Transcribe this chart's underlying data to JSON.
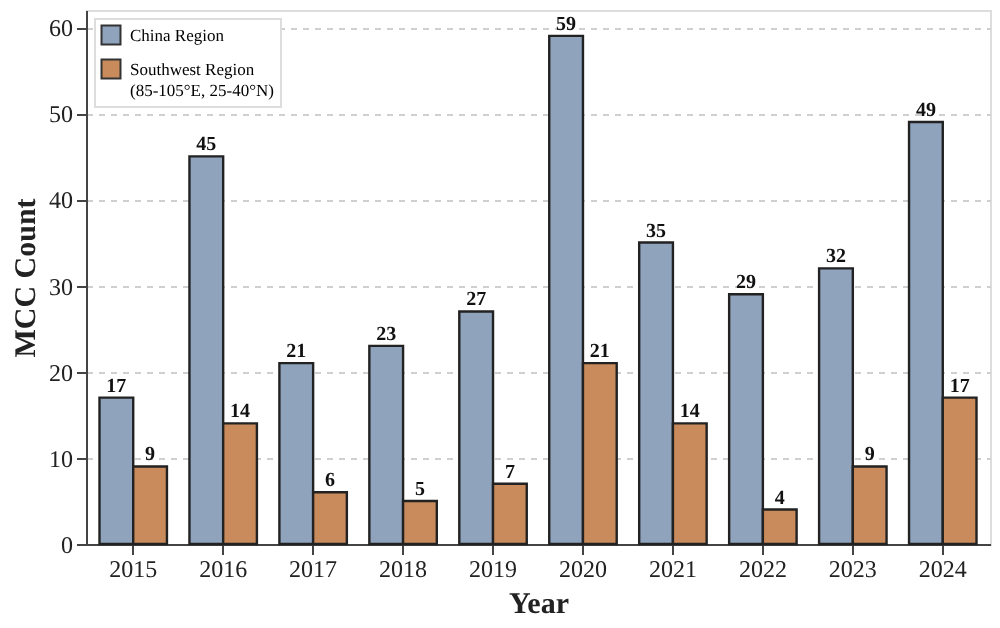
{
  "chart_data": {
    "type": "bar",
    "xlabel": "Year",
    "ylabel": "MCC Count",
    "categories": [
      "2015",
      "2016",
      "2017",
      "2018",
      "2019",
      "2020",
      "2021",
      "2022",
      "2023",
      "2024"
    ],
    "series": [
      {
        "name": "China Region",
        "color": "#8fa3bd",
        "values": [
          17,
          45,
          21,
          23,
          27,
          59,
          35,
          29,
          32,
          49
        ]
      },
      {
        "name": "Southwest Region\n(85-105°E, 25-40°N)",
        "color": "#c98b5b",
        "values": [
          9,
          14,
          6,
          5,
          7,
          21,
          14,
          4,
          9,
          17
        ]
      }
    ],
    "ylim": [
      0,
      62
    ],
    "yticks": [
      0,
      10,
      20,
      30,
      40,
      50,
      60
    ],
    "grid": "y",
    "legend": "top left",
    "data_labels": true
  }
}
